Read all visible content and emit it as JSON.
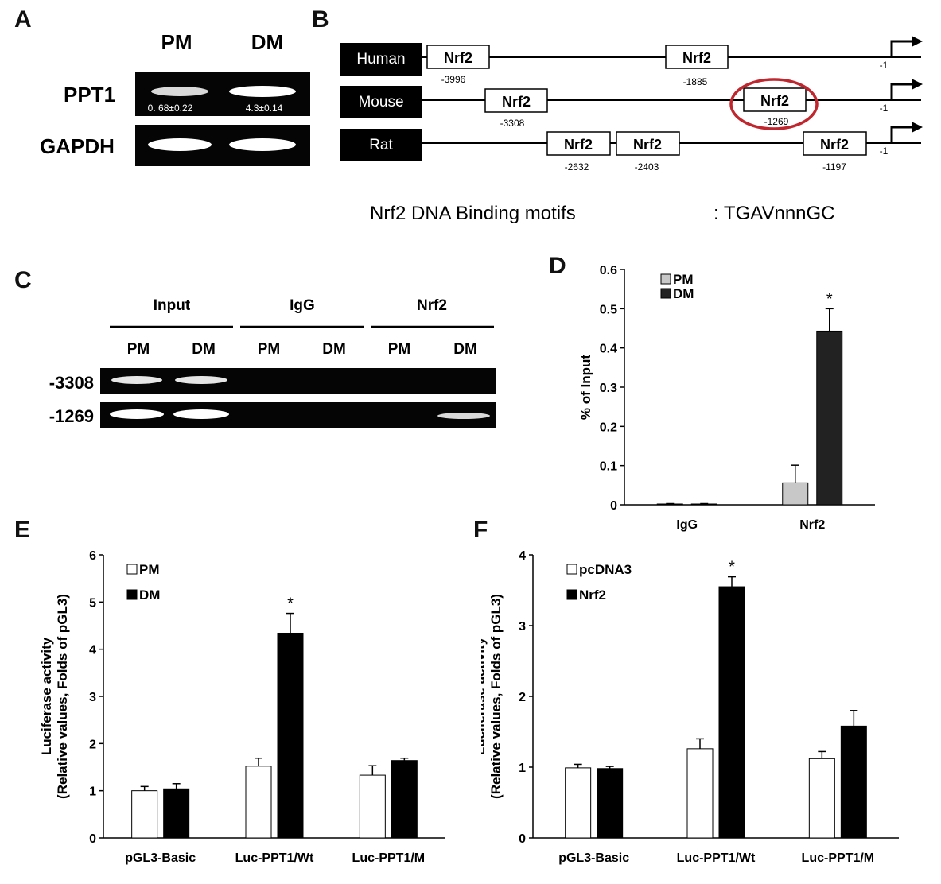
{
  "panels": {
    "a": {
      "letter": "A",
      "columns": [
        "PM",
        "DM"
      ],
      "rows": [
        {
          "label": "PPT1",
          "band_values": [
            "0. 68±0.22",
            "4.3±0.14"
          ]
        },
        {
          "label": "GAPDH",
          "band_values": [
            "",
            ""
          ]
        }
      ]
    },
    "b": {
      "letter": "B",
      "species": [
        {
          "name": "Human",
          "sites": [
            {
              "label": "Nrf2",
              "pos": "-3996"
            },
            {
              "label": "Nrf2",
              "pos": "-1885"
            }
          ],
          "tss": "-1"
        },
        {
          "name": "Mouse",
          "sites": [
            {
              "label": "Nrf2",
              "pos": "-3308"
            },
            {
              "label": "Nrf2",
              "pos": "-1269"
            }
          ],
          "tss": "-1"
        },
        {
          "name": "Rat",
          "sites": [
            {
              "label": "Nrf2",
              "pos": "-2632"
            },
            {
              "label": "Nrf2",
              "pos": "-2403"
            },
            {
              "label": "Nrf2",
              "pos": "-1197"
            }
          ],
          "tss": "-1"
        }
      ],
      "motif_caption": "Nrf2 DNA Binding motifs",
      "motif_sequence": ": TGAVnnnGC",
      "highlight_color": "#c0262d"
    },
    "c": {
      "letter": "C",
      "groups": [
        "Input",
        "IgG",
        "Nrf2"
      ],
      "lanes": [
        "PM",
        "DM",
        "PM",
        "DM",
        "PM",
        "DM"
      ],
      "rows": [
        "-3308",
        "-1269"
      ]
    },
    "d": {
      "letter": "D"
    },
    "e": {
      "letter": "E"
    },
    "f": {
      "letter": "F"
    }
  },
  "chart_data": [
    {
      "panel": "D",
      "type": "bar",
      "categories": [
        "IgG",
        "Nrf2"
      ],
      "ylabel": "% of Input",
      "ylim": [
        0,
        0.6
      ],
      "yticks": [
        "0",
        "0.1",
        "0.2",
        "0.3",
        "0.4",
        "0.5",
        "0.6"
      ],
      "legend_position": "top-left",
      "series": [
        {
          "name": "PM",
          "color": "#c8c8c8",
          "values": [
            0.002,
            0.056
          ],
          "errors": [
            0.001,
            0.045
          ]
        },
        {
          "name": "DM",
          "color": "#222222",
          "values": [
            0.002,
            0.443
          ],
          "errors": [
            0.001,
            0.057
          ]
        }
      ],
      "annotations": [
        {
          "category": "Nrf2",
          "series": "DM",
          "text": "*"
        }
      ]
    },
    {
      "panel": "E",
      "type": "bar",
      "categories": [
        "pGL3-Basic",
        "Luc-PPT1/Wt",
        "Luc-PPT1/M"
      ],
      "ylabel": "Luciferase activity",
      "ylabel2": "(Relative values, Folds of pGL3)",
      "ylim": [
        0,
        6
      ],
      "yticks": [
        "0",
        "1",
        "2",
        "3",
        "4",
        "5",
        "6"
      ],
      "legend_position": "top-left",
      "series": [
        {
          "name": "PM",
          "color": "#ffffff",
          "values": [
            1.0,
            1.52,
            1.33
          ],
          "errors": [
            0.09,
            0.17,
            0.2
          ]
        },
        {
          "name": "DM",
          "color": "#000000",
          "values": [
            1.04,
            4.34,
            1.64
          ],
          "errors": [
            0.11,
            0.42,
            0.05
          ]
        }
      ],
      "annotations": [
        {
          "category": "Luc-PPT1/Wt",
          "series": "DM",
          "text": "*"
        }
      ]
    },
    {
      "panel": "F",
      "type": "bar",
      "categories": [
        "pGL3-Basic",
        "Luc-PPT1/Wt",
        "Luc-PPT1/M"
      ],
      "ylabel": "Luciferase activity",
      "ylabel2": "(Relative values, Folds of pGL3)",
      "ylim": [
        0,
        4
      ],
      "yticks": [
        "0",
        "1",
        "2",
        "3",
        "4"
      ],
      "legend_position": "top-left",
      "series": [
        {
          "name": "pcDNA3",
          "color": "#ffffff",
          "values": [
            0.99,
            1.26,
            1.12
          ],
          "errors": [
            0.05,
            0.14,
            0.1
          ]
        },
        {
          "name": "Nrf2",
          "color": "#000000",
          "values": [
            0.98,
            3.55,
            1.58
          ],
          "errors": [
            0.03,
            0.14,
            0.22
          ]
        }
      ],
      "annotations": [
        {
          "category": "Luc-PPT1/Wt",
          "series": "Nrf2",
          "text": "*"
        }
      ]
    }
  ]
}
